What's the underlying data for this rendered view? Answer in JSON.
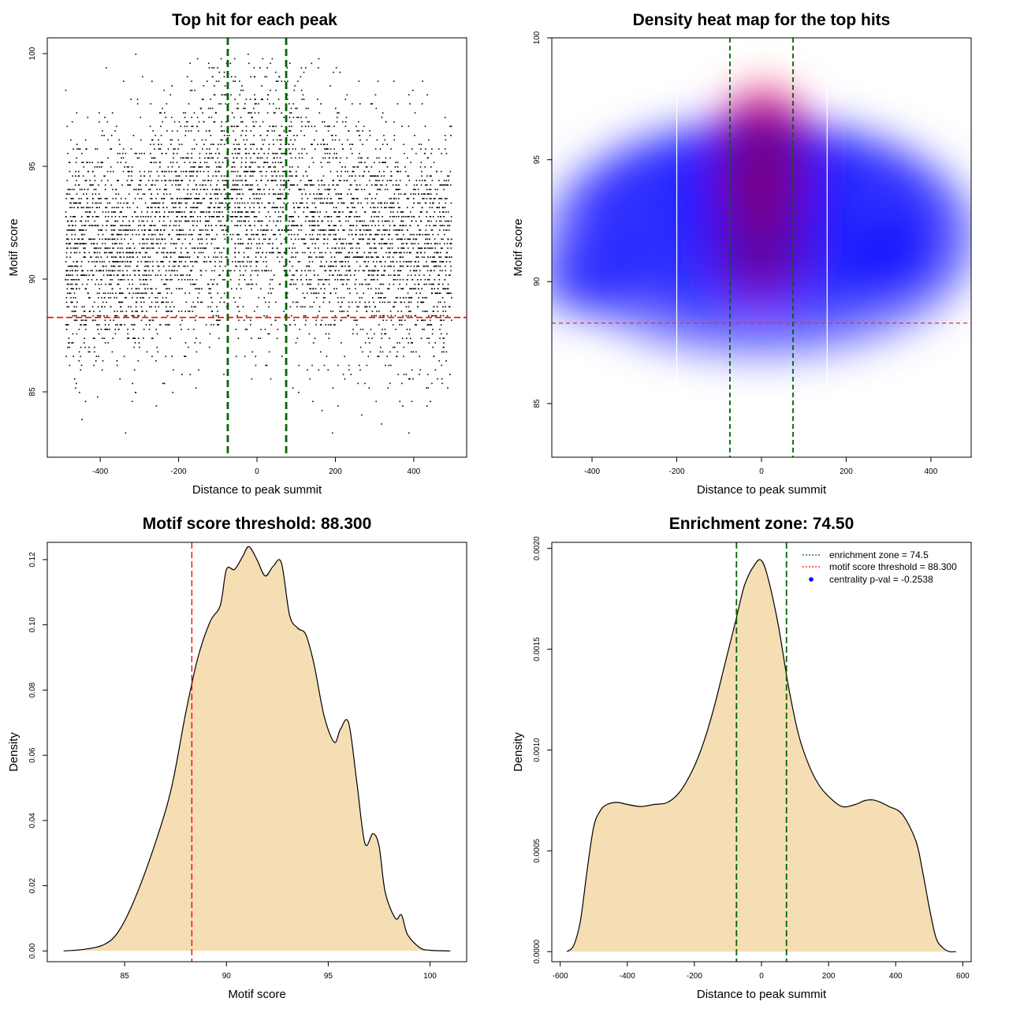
{
  "chart_data": [
    {
      "id": "scatter",
      "type": "scatter",
      "title": "Top hit for each peak",
      "xlabel": "Distance to peak summit",
      "ylabel": "Motif score",
      "xlim": [
        -535,
        535
      ],
      "ylim": [
        82.1,
        100.7
      ],
      "xticks": [
        -400,
        -200,
        0,
        200,
        400
      ],
      "yticks": [
        85,
        90,
        95,
        100
      ],
      "x_range_points": [
        -490,
        495
      ],
      "vlines": [
        -74.5,
        74.5
      ],
      "hline": 88.3,
      "description_points": "Top-hit motif score versus distance to peak summit; dense horizontal bands between 86 and 97, concentrated near the summit."
    },
    {
      "id": "heatmap",
      "type": "heatmap",
      "title": "Density heat map for the top hits",
      "xlabel": "Distance to peak summit",
      "ylabel": "Motif score",
      "xlim": [
        -495,
        495
      ],
      "ylim": [
        82.8,
        100
      ],
      "xticks": [
        -400,
        -200,
        0,
        200,
        400
      ],
      "yticks": [
        85,
        90,
        95,
        100
      ],
      "vlines": [
        -74.5,
        74.5
      ],
      "white_lines": [
        -200,
        155
      ],
      "hline": 88.3,
      "hotspots": [
        {
          "x": 0,
          "y": 94,
          "intensity": 1.0
        },
        {
          "x": 5,
          "y": 96,
          "intensity": 0.8
        },
        {
          "x": 0,
          "y": 91.5,
          "intensity": 0.75
        },
        {
          "x": -420,
          "y": 90,
          "intensity": 0.55
        },
        {
          "x": 300,
          "y": 91,
          "intensity": 0.55
        }
      ]
    },
    {
      "id": "score_density",
      "type": "area",
      "title": "Motif score threshold: 88.300",
      "xlabel": "Motif score",
      "ylabel": "Density",
      "xlim": [
        81.2,
        101.8
      ],
      "ylim": [
        -0.0033,
        0.1253
      ],
      "xticks": [
        85,
        90,
        95,
        100
      ],
      "yticks": [
        0.0,
        0.02,
        0.04,
        0.06,
        0.08,
        0.1,
        0.12
      ],
      "ytick_labels": [
        "0.00",
        "0.02",
        "0.04",
        "0.06",
        "0.08",
        "0.10",
        "0.12"
      ],
      "vline": 88.3,
      "x": [
        82.0,
        83.0,
        84.0,
        84.7,
        85.5,
        86.5,
        87.3,
        88.0,
        88.6,
        89.2,
        89.7,
        90.0,
        90.4,
        90.8,
        91.1,
        91.5,
        91.9,
        92.3,
        92.7,
        93.1,
        93.5,
        93.9,
        94.3,
        94.8,
        95.3,
        95.6,
        96.0,
        96.4,
        96.8,
        97.2,
        97.5,
        97.8,
        98.3,
        98.6,
        98.9,
        99.5,
        100.0,
        101.0
      ],
      "y": [
        0.0,
        0.0005,
        0.002,
        0.006,
        0.016,
        0.033,
        0.05,
        0.073,
        0.09,
        0.101,
        0.106,
        0.117,
        0.117,
        0.121,
        0.124,
        0.12,
        0.115,
        0.118,
        0.119,
        0.103,
        0.099,
        0.097,
        0.088,
        0.072,
        0.064,
        0.068,
        0.07,
        0.052,
        0.033,
        0.036,
        0.032,
        0.018,
        0.01,
        0.011,
        0.005,
        0.001,
        0.0002,
        0.0
      ]
    },
    {
      "id": "distance_density",
      "type": "area",
      "title": "Enrichment zone: 74.50",
      "xlabel": "Distance to peak summit",
      "ylabel": "Density",
      "xlim": [
        -625,
        625
      ],
      "ylim": [
        -5e-05,
        0.00203
      ],
      "xticks": [
        -600,
        -400,
        -200,
        0,
        200,
        400,
        600
      ],
      "yticks": [
        0.0,
        0.0005,
        0.001,
        0.0015,
        0.002
      ],
      "ytick_labels": [
        "0.0000",
        "0.0005",
        "0.0010",
        "0.0015",
        "0.0020"
      ],
      "vlines": [
        -74.5,
        74.5
      ],
      "x": [
        -580,
        -560,
        -540,
        -520,
        -500,
        -480,
        -460,
        -430,
        -400,
        -360,
        -320,
        -280,
        -240,
        -200,
        -170,
        -140,
        -110,
        -80,
        -50,
        -20,
        0,
        20,
        50,
        80,
        110,
        140,
        170,
        200,
        240,
        280,
        310,
        340,
        380,
        420,
        460,
        480,
        500,
        520,
        540,
        560,
        580
      ],
      "y": [
        0.0,
        3e-05,
        0.00015,
        0.0004,
        0.00062,
        0.0007,
        0.00073,
        0.00074,
        0.00073,
        0.00072,
        0.00073,
        0.00074,
        0.0008,
        0.00092,
        0.00105,
        0.00122,
        0.00142,
        0.00162,
        0.00182,
        0.00192,
        0.00194,
        0.00185,
        0.00162,
        0.00132,
        0.00108,
        0.00093,
        0.00083,
        0.00077,
        0.00072,
        0.00073,
        0.00075,
        0.00075,
        0.00072,
        0.00068,
        0.00055,
        0.0004,
        0.00022,
        7e-05,
        2e-05,
        0.0,
        0.0
      ],
      "legend": {
        "position": "top-right",
        "entries": [
          {
            "label": "enrichment zone = 74.5",
            "style": "dotted",
            "color": "#006400"
          },
          {
            "label": "motif score threshold = 88.300",
            "style": "dotted",
            "color": "#ff0000"
          },
          {
            "label": "centrality p-val = -0.2538",
            "style": "point",
            "color": "#0000ff"
          }
        ]
      }
    }
  ],
  "colors": {
    "fill": "#f5deb3",
    "threshold": "#ff0000",
    "zone": "#006400",
    "heat_low": "#0000ff",
    "heat_high": "#ff0000"
  }
}
